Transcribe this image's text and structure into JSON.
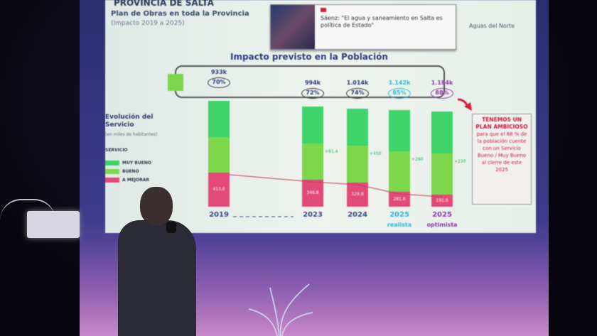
{
  "slide": {
    "title": "PROVINCIA DE SALTA",
    "subtitle": "Plan de Obras en toda la Provincia",
    "period": "(Impacto 2019 a 2025)",
    "news_headline": "Sáenz: \"El agua y saneamiento en Salta es política de Estado\"",
    "brand": "Aguas del Norte",
    "chart_title": "Impacto previsto en la Población",
    "legend_heading": "Evolución del Servicio",
    "legend_sub": "(en miles de habitantes)",
    "legend_group": "SERVICIO",
    "legend": [
      {
        "label": "MUY BUENO",
        "color": "#3ed46a"
      },
      {
        "label": "BUENO",
        "color": "#7cd84a"
      },
      {
        "label": "A MEJORAR",
        "color": "#e24a7a"
      }
    ],
    "columns": [
      {
        "year": "2019",
        "population": "933k",
        "percent": "70%",
        "a_mejorar": "413,0",
        "increment": "",
        "pct_color": "#2e3a7a"
      },
      {
        "year": "2023",
        "population": "994k",
        "percent": "72%",
        "a_mejorar": "346,8",
        "increment": "+81,4",
        "pct_color": "#2e3a7a"
      },
      {
        "year": "2024",
        "population": "1.014k",
        "percent": "74%",
        "a_mejorar": "329,8",
        "increment": "+450",
        "pct_color": "#2e3a7a"
      },
      {
        "year": "2025",
        "year_note": "realista",
        "population": "1.142k",
        "percent": "85%",
        "a_mejorar": "281,8",
        "increment": "+280",
        "pct_color": "#2ab8d8"
      },
      {
        "year": "2025",
        "year_note": "optimista",
        "population": "1.184k",
        "percent": "88%",
        "a_mejorar": "191,0",
        "increment": "+220",
        "pct_color": "#8a3aa8"
      }
    ],
    "callout_heading": "TENEMOS UN PLAN AMBICIOSO",
    "callout_body": "para que el 88 % de la población cuente con un Servicio Bueno / Muy Bueno al cierre de este 2025"
  }
}
